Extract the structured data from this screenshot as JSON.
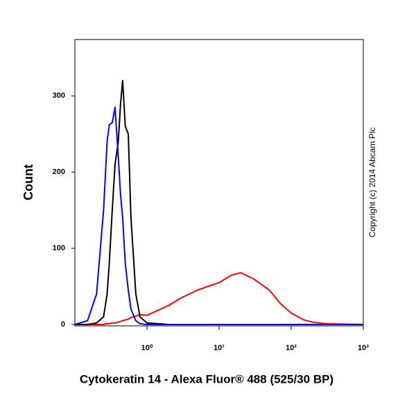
{
  "chart_data": {
    "type": "line",
    "x_label": "Cytokeratin 14 - Alexa Fluor® 488 (525/30 BP)",
    "y_label": "Count",
    "annotation": "Copyright (c) 2014 Abcam Plc",
    "x": [
      0.1,
      0.15,
      0.2,
      0.25,
      0.28,
      0.3,
      0.33,
      0.36,
      0.4,
      0.43,
      0.46,
      0.5,
      0.55,
      0.6,
      0.7,
      0.8,
      1,
      2,
      3,
      5,
      7,
      10,
      15,
      20,
      30,
      50,
      70,
      100,
      150,
      200,
      300,
      1000
    ],
    "series": [
      {
        "color": "#0000ff",
        "values": [
          0,
          5,
          40,
          150,
          240,
          262,
          265,
          285,
          220,
          170,
          140,
          80,
          45,
          20,
          5,
          1,
          0,
          0,
          0,
          0,
          0,
          0,
          0,
          0,
          0,
          0,
          0,
          0,
          0,
          0,
          0,
          0
        ]
      },
      {
        "color": "#000000",
        "values": [
          0,
          0,
          2,
          10,
          40,
          80,
          150,
          210,
          240,
          290,
          320,
          260,
          250,
          140,
          40,
          10,
          2,
          0,
          0,
          0,
          0,
          0,
          0,
          0,
          0,
          0,
          0,
          0,
          0,
          0,
          0,
          0
        ]
      },
      {
        "color": "#ff0000",
        "values": [
          0,
          0,
          0,
          0,
          1,
          1,
          2,
          2,
          3,
          4,
          5,
          6,
          7,
          9,
          11,
          13,
          12,
          25,
          35,
          45,
          50,
          55,
          65,
          68,
          60,
          45,
          28,
          15,
          6,
          3,
          1,
          0
        ]
      }
    ],
    "xlog": true,
    "xlim": [
      0.1,
      1000
    ],
    "xticks": [
      {
        "value": 1,
        "label": "10⁰"
      },
      {
        "value": 10,
        "label": "10¹"
      },
      {
        "value": 100,
        "label": "10²"
      },
      {
        "value": 1000,
        "label": "10³"
      }
    ],
    "ylim": [
      0,
      374
    ],
    "yticks": [
      0,
      100,
      200,
      300
    ],
    "grid": false
  }
}
